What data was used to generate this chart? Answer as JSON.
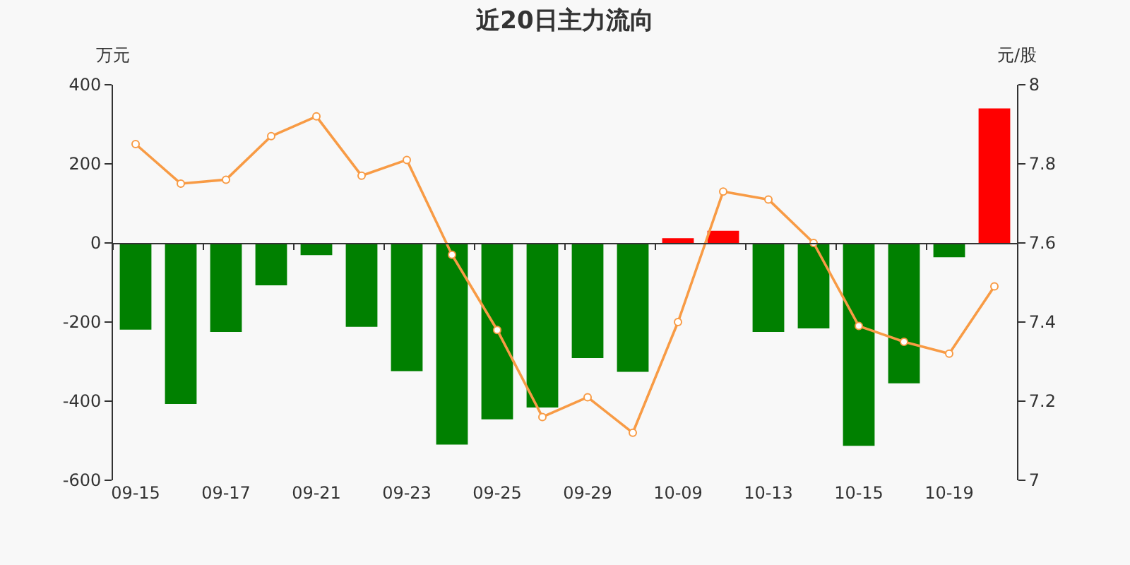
{
  "chart_data": {
    "type": "bar",
    "title": "近20日主力流向",
    "ylabel": "万元",
    "y2label": "元/股",
    "categories": [
      "09-15",
      null,
      "09-17",
      null,
      "09-21",
      null,
      "09-23",
      null,
      "09-25",
      null,
      "09-29",
      null,
      "10-09",
      null,
      "10-13",
      null,
      "10-15",
      null,
      "10-19",
      null
    ],
    "series": [
      {
        "colors": [
          "#008000",
          "#008000",
          "#008000",
          "#008000",
          "#008000",
          "#008000",
          "#008000",
          "#008000",
          "#008000",
          "#008000",
          "#008000",
          "#008000",
          "#ff0000",
          "#ff0000",
          "#008000",
          "#008000",
          "#008000",
          "#008000",
          "#008000",
          "#ff0000"
        ],
        "values": [
          -219,
          -407,
          -225,
          -107,
          -31,
          -212,
          -324,
          -510,
          -446,
          -416,
          -291,
          -326,
          12,
          31,
          -225,
          -216,
          -513,
          -355,
          -36,
          340
        ]
      },
      {
        "type": "line",
        "axis": "y2",
        "color": "#f89b45",
        "values": [
          7.85,
          7.75,
          7.76,
          7.87,
          7.92,
          7.77,
          7.81,
          7.57,
          7.38,
          7.16,
          7.21,
          7.12,
          7.4,
          7.73,
          7.71,
          7.6,
          7.39,
          7.35,
          7.32,
          7.49
        ]
      }
    ],
    "ylim": [
      -600,
      400
    ],
    "yticks": [
      -600,
      -400,
      -200,
      0,
      200,
      400
    ],
    "y2lim": [
      7,
      8
    ],
    "y2ticks": [
      7,
      7.2,
      7.4,
      7.6,
      7.8,
      8
    ],
    "marker": "circle"
  }
}
